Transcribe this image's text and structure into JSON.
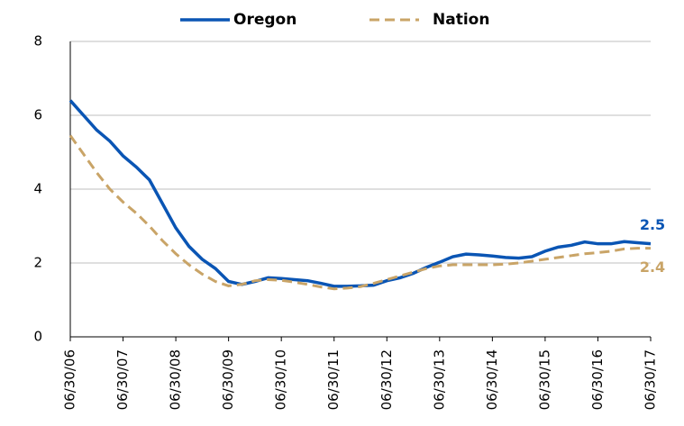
{
  "chart_data": {
    "type": "line",
    "categories": [
      "06/30/06",
      null,
      null,
      null,
      "06/30/07",
      null,
      null,
      null,
      "06/30/08",
      null,
      null,
      null,
      "06/30/09",
      null,
      null,
      null,
      "06/30/10",
      null,
      null,
      null,
      "06/30/11",
      null,
      null,
      null,
      "06/30/12",
      null,
      null,
      null,
      "06/30/13",
      null,
      null,
      null,
      "06/30/14",
      null,
      null,
      null,
      "06/30/15",
      null,
      null,
      null,
      "06/30/16",
      null,
      null,
      null,
      "06/30/17"
    ],
    "series": [
      {
        "name": "Oregon",
        "color": "#0a55b4",
        "dash": false,
        "label_last": true,
        "values": [
          6.4,
          6.0,
          5.6,
          5.3,
          4.9,
          4.6,
          4.25,
          3.6,
          2.95,
          2.45,
          2.1,
          1.85,
          1.5,
          1.42,
          1.5,
          1.6,
          1.58,
          1.55,
          1.52,
          1.45,
          1.37,
          1.37,
          1.38,
          1.4,
          1.52,
          1.6,
          1.72,
          1.88,
          2.02,
          2.17,
          2.24,
          2.22,
          2.19,
          2.15,
          2.13,
          2.17,
          2.32,
          2.43,
          2.48,
          2.57,
          2.52,
          2.52,
          2.58,
          2.55,
          2.52
        ],
        "value_labels": [
          null,
          null,
          null,
          null,
          null,
          null,
          null,
          null,
          null,
          null,
          null,
          null,
          null,
          null,
          null,
          null,
          null,
          null,
          null,
          null,
          null,
          null,
          null,
          null,
          null,
          null,
          null,
          null,
          null,
          null,
          null,
          null,
          null,
          null,
          null,
          null,
          null,
          null,
          null,
          null,
          null,
          null,
          null,
          null,
          "2.5"
        ]
      },
      {
        "name": "Nation",
        "color": "#c9a467",
        "dash": true,
        "label_last": true,
        "values": [
          5.45,
          4.95,
          4.45,
          4.0,
          3.65,
          3.35,
          3.0,
          2.6,
          2.25,
          1.95,
          1.7,
          1.5,
          1.38,
          1.42,
          1.52,
          1.55,
          1.53,
          1.48,
          1.42,
          1.35,
          1.3,
          1.32,
          1.36,
          1.45,
          1.55,
          1.65,
          1.75,
          1.85,
          1.92,
          1.95,
          1.95,
          1.95,
          1.95,
          1.97,
          2.0,
          2.05,
          2.1,
          2.15,
          2.2,
          2.25,
          2.28,
          2.32,
          2.38,
          2.4,
          2.4
        ]
      }
    ],
    "ylim": [
      0,
      8
    ],
    "yticks": [
      0,
      2,
      4,
      6,
      8
    ],
    "grid": true
  }
}
